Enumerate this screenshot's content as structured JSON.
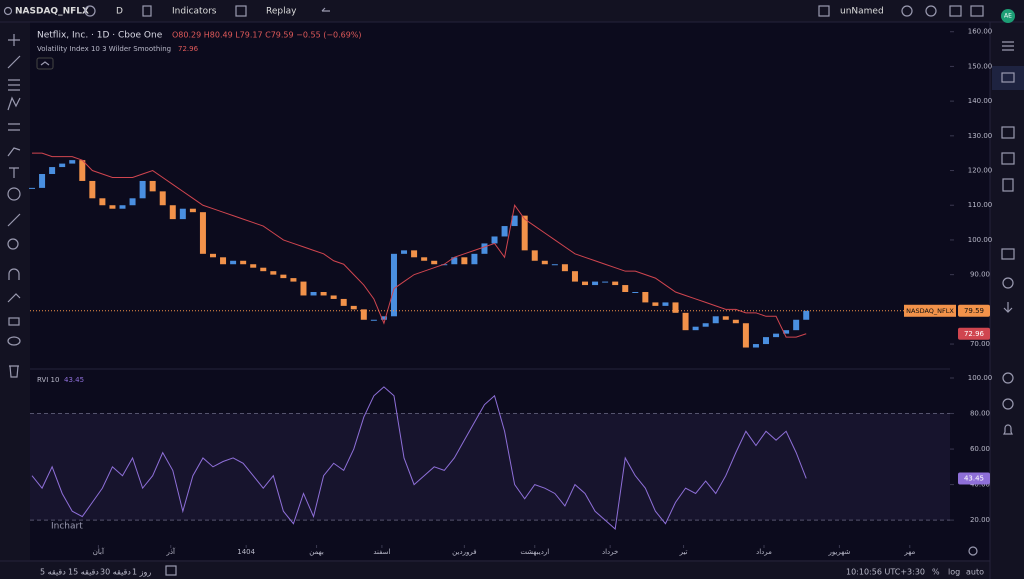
{
  "toolbar": {
    "symbol": "NASDAQ_NFLX",
    "interval": "D",
    "indicators": "Indicators",
    "replay": "Replay",
    "layout": "unNamed",
    "avatar": "AE"
  },
  "chart_data": [
    {
      "type": "candlestick",
      "title": "Netflix, Inc. · 1D · Cboe One",
      "ohlc": "O80.29 H80.49 L79.17 C79.59 −0.55 (−0.69%)",
      "indicator": "Volatility Index 10 3 Wilder Smoothing",
      "xlim": [
        -0.2,
        91.3
      ],
      "xticks": [
        {
          "value": 6.6,
          "label": "آبان"
        },
        {
          "value": 13.8,
          "label": "آذر"
        },
        {
          "value": 21.3,
          "label": "1404"
        },
        {
          "value": 28.3,
          "label": "بهمن"
        },
        {
          "value": 34.8,
          "label": "اسفند"
        },
        {
          "value": 43,
          "label": "فروردین"
        },
        {
          "value": 50,
          "label": "اردیبهشت"
        },
        {
          "value": 57.5,
          "label": "خرداد"
        },
        {
          "value": 64.8,
          "label": "تیر"
        },
        {
          "value": 72.8,
          "label": "مرداد"
        },
        {
          "value": 80.3,
          "label": "شهریور"
        },
        {
          "value": 87.3,
          "label": "مهر"
        }
      ],
      "ylim": [
        63.1,
        162.8
      ],
      "yticks": [
        {
          "value": 70,
          "label": "70.00"
        },
        {
          "value": 80,
          "label": "80.00"
        },
        {
          "value": 90,
          "label": "90.00"
        },
        {
          "value": 100,
          "label": "100.00"
        },
        {
          "value": 110,
          "label": "110.00"
        },
        {
          "value": 120,
          "label": "120.00"
        },
        {
          "value": 130,
          "label": "130.00"
        },
        {
          "value": 140,
          "label": "140.00"
        },
        {
          "value": 150,
          "label": "150.00"
        },
        {
          "value": 160,
          "label": "160.00"
        }
      ],
      "grid": false,
      "series": [
        {
          "name": "NASDAQ_NFLX",
          "up_color": "#4a8fe0",
          "down_color": "#f2924a",
          "values": [
            115,
            119,
            121,
            122,
            123,
            117,
            112,
            110,
            109,
            110,
            112,
            117,
            114,
            110,
            106,
            109,
            108,
            96,
            95,
            93,
            94,
            93,
            92,
            91,
            90,
            89,
            88,
            84,
            85,
            84,
            83,
            81,
            80,
            77,
            77,
            78,
            96,
            97,
            95,
            94,
            93,
            93,
            95,
            93,
            96,
            99,
            101,
            104,
            107,
            97,
            94,
            93,
            93,
            91,
            88,
            87,
            88,
            88,
            87,
            85,
            85,
            82,
            81,
            82,
            79,
            74,
            75,
            76,
            78,
            77,
            76,
            69,
            70,
            72,
            73,
            74,
            77,
            79.59
          ]
        },
        {
          "name": "Volatility Index 10 3 Wilder Smoothing",
          "color": "#d0454f",
          "values": [
            125,
            125,
            124,
            124,
            124,
            123,
            120,
            119,
            118,
            118,
            118,
            119,
            120,
            118,
            116,
            114,
            112,
            110,
            109,
            108,
            107,
            106,
            105,
            104,
            102,
            100,
            99,
            98,
            97,
            96,
            94,
            93,
            90,
            87,
            83,
            76,
            86,
            88,
            90,
            91,
            92,
            93,
            95,
            96,
            97,
            98,
            99,
            95,
            110,
            106,
            104,
            102,
            100,
            98,
            96,
            95,
            94,
            93,
            92,
            91,
            91,
            90,
            89,
            87,
            85,
            84,
            83,
            82,
            81,
            80,
            80,
            79,
            79,
            78,
            78,
            72,
            72,
            72.96
          ]
        }
      ]
    },
    {
      "type": "line",
      "title": "RVI 10",
      "xlim": [
        -0.2,
        91.3
      ],
      "ylim": [
        6,
        104.5
      ],
      "yticks": [
        {
          "value": 20,
          "label": "20.00"
        },
        {
          "value": 40,
          "label": "40.00"
        },
        {
          "value": 60,
          "label": "60.00"
        },
        {
          "value": 80,
          "label": "80.00"
        },
        {
          "value": 100,
          "label": "100.00"
        }
      ],
      "levels": [
        20,
        80
      ],
      "series": [
        {
          "name": "RVI 10",
          "color": "#8e6fd8",
          "values": [
            45,
            38,
            50,
            35,
            25,
            22,
            30,
            38,
            50,
            45,
            55,
            38,
            45,
            58,
            48,
            25,
            45,
            55,
            50,
            53,
            55,
            52,
            45,
            38,
            45,
            25,
            18,
            35,
            22,
            45,
            52,
            48,
            60,
            78,
            90,
            95,
            90,
            55,
            40,
            45,
            50,
            48,
            55,
            65,
            75,
            85,
            90,
            70,
            40,
            32,
            40,
            38,
            35,
            28,
            40,
            35,
            25,
            20,
            15,
            55,
            45,
            38,
            25,
            18,
            30,
            38,
            35,
            42,
            35,
            45,
            58,
            70,
            62,
            70,
            65,
            70,
            58,
            43.45
          ]
        }
      ]
    }
  ],
  "watermark": "Inchart",
  "footer": {
    "ranges": [
      "5 دقیقه",
      "15 دقیقه",
      "30 دقیقه",
      "1 روز"
    ],
    "clock": "10:10:56 UTC+3:30",
    "percent": "%",
    "log": "log",
    "auto": "auto"
  }
}
